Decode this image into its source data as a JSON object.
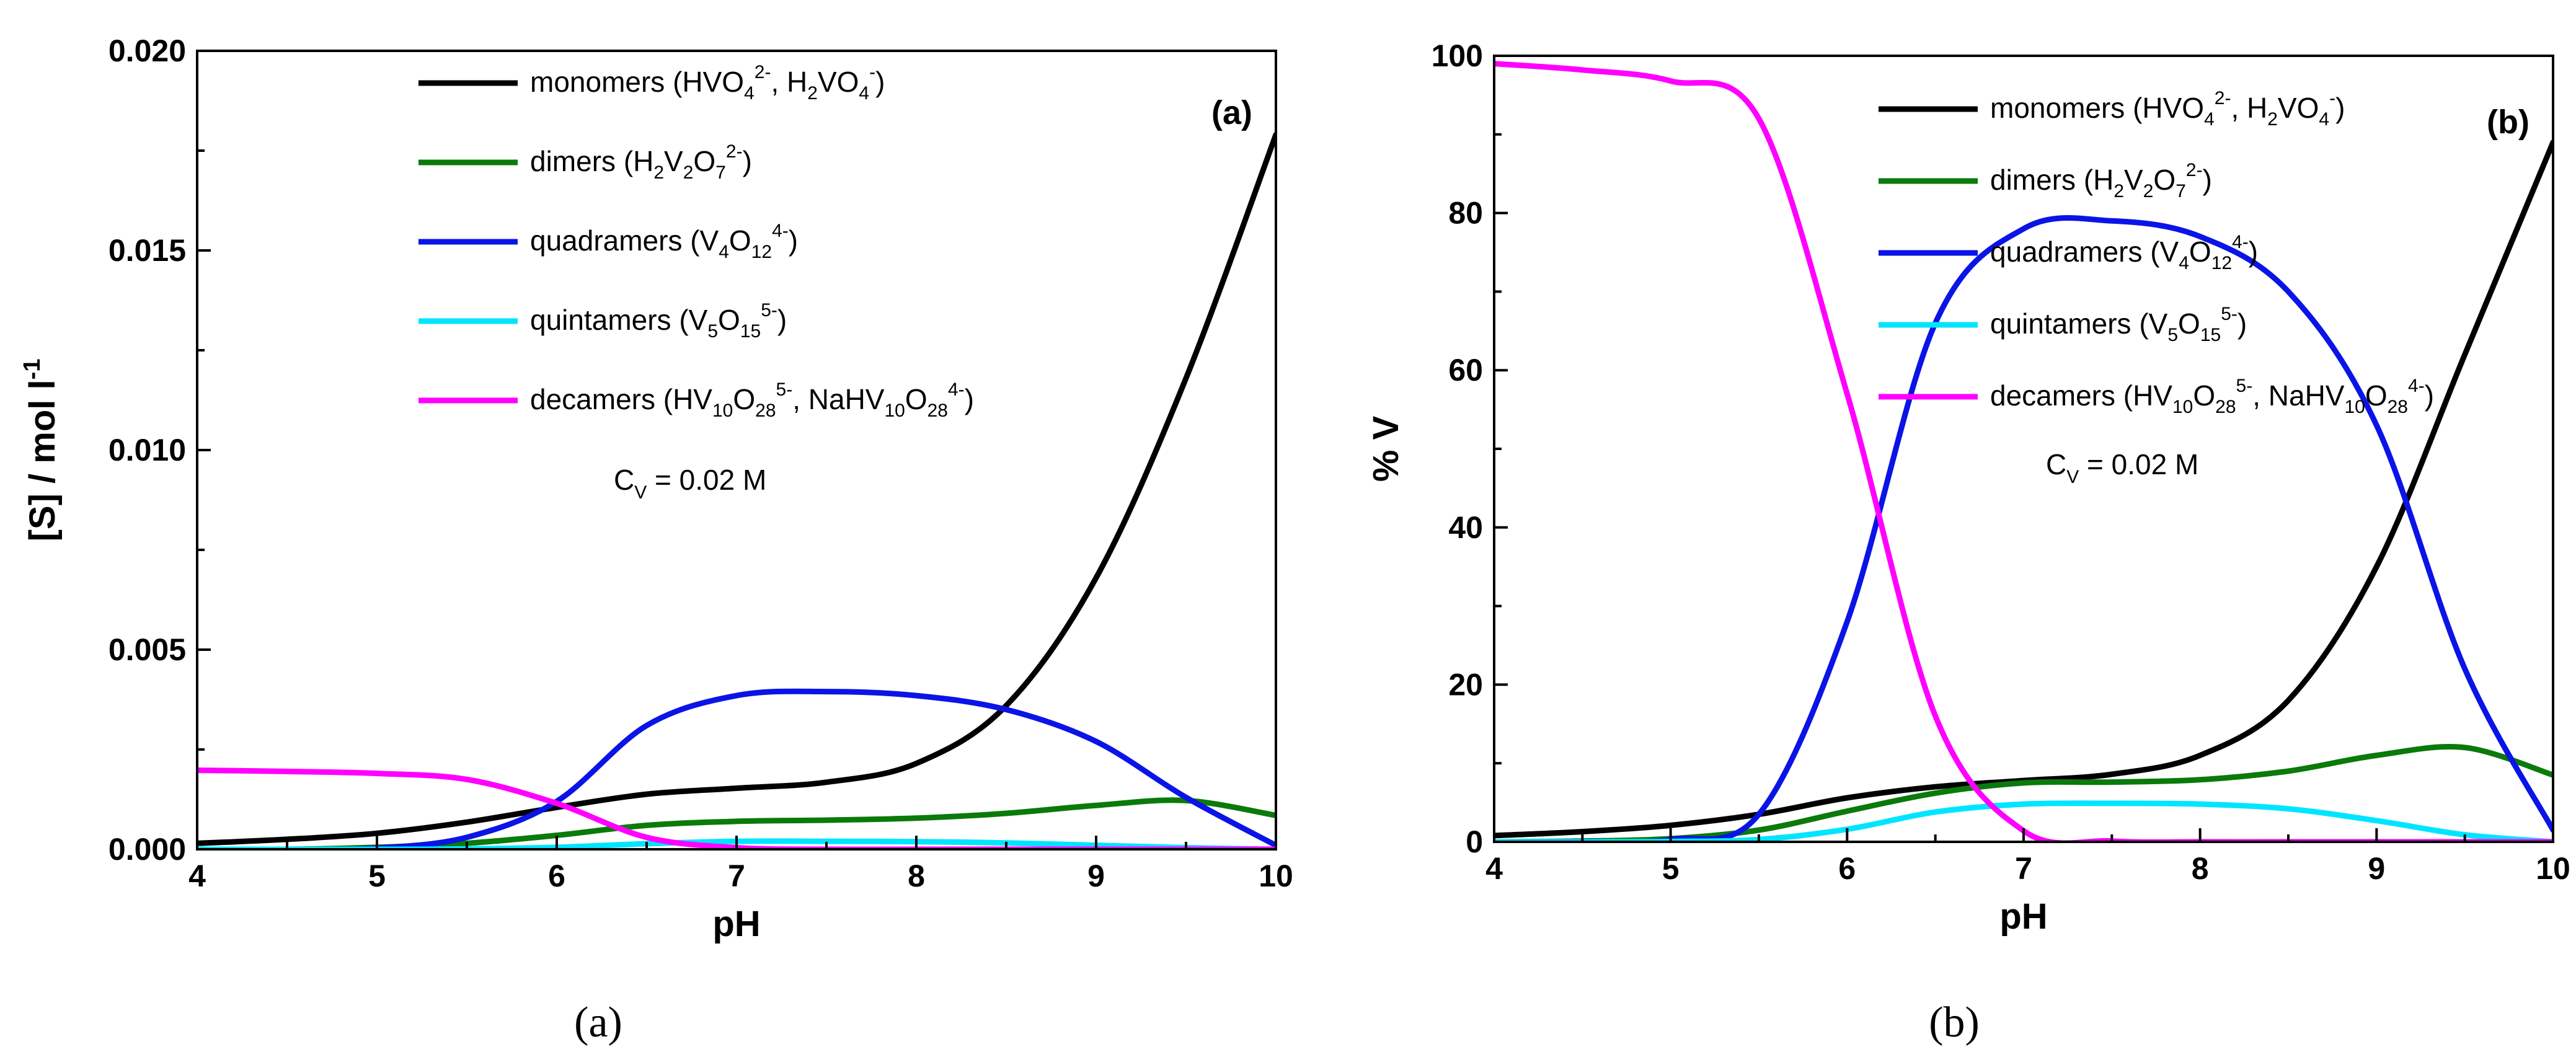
{
  "chart_data": [
    {
      "type": "line",
      "panel_tag": "(a)",
      "caption": "(a)",
      "xlabel": "pH",
      "ylabel": "[S] / mol l",
      "ylabel_sup": "-1",
      "xlim": [
        4,
        10
      ],
      "ylim": [
        0,
        0.02
      ],
      "xticks": [
        "4",
        "5",
        "6",
        "7",
        "8",
        "9",
        "10"
      ],
      "yticks": [
        "0.000",
        "0.005",
        "0.010",
        "0.015",
        "0.020"
      ],
      "annotation": {
        "main": "C",
        "sub": "V",
        "rest": " = 0.02 M"
      },
      "x": [
        4,
        4.5,
        5,
        5.5,
        6,
        6.5,
        7,
        7.5,
        8,
        8.5,
        9,
        9.5,
        10
      ],
      "series": [
        {
          "name": "monomers",
          "color": "#000000",
          "values": [
            0.00015,
            0.00025,
            0.0004,
            0.00068,
            0.00105,
            0.00138,
            0.00153,
            0.00168,
            0.00215,
            0.0036,
            0.0068,
            0.0118,
            0.0179
          ]
        },
        {
          "name": "dimers",
          "color": "#0a7a0a",
          "values": [
            0,
            0,
            5e-05,
            0.00015,
            0.00035,
            0.0006,
            0.0007,
            0.00073,
            0.00078,
            0.0009,
            0.0011,
            0.00122,
            0.00085
          ]
        },
        {
          "name": "quadramers",
          "color": "#0a14e6",
          "values": [
            0,
            0,
            3e-05,
            0.0003,
            0.0012,
            0.0031,
            0.00385,
            0.00395,
            0.00385,
            0.0035,
            0.0027,
            0.0013,
            0.0001
          ]
        },
        {
          "name": "quintamers",
          "color": "#00e5ff",
          "values": [
            0,
            0,
            0,
            1e-05,
            5e-05,
            0.00014,
            0.0002,
            0.0002,
            0.00019,
            0.00016,
            0.0001,
            4e-05,
            0
          ]
        },
        {
          "name": "decamers",
          "color": "#ff00ff",
          "values": [
            0.00198,
            0.00195,
            0.0019,
            0.00175,
            0.00115,
            0.0003,
            4e-05,
            0,
            0,
            0,
            0,
            0,
            0
          ]
        }
      ]
    },
    {
      "type": "line",
      "panel_tag": "(b)",
      "caption": "(b)",
      "xlabel": "pH",
      "ylabel": "% V",
      "ylabel_sup": "",
      "xlim": [
        4,
        10
      ],
      "ylim": [
        0,
        100
      ],
      "xticks": [
        "4",
        "5",
        "6",
        "7",
        "8",
        "9",
        "10"
      ],
      "yticks": [
        "0",
        "20",
        "40",
        "60",
        "80",
        "100"
      ],
      "annotation": {
        "main": "C",
        "sub": "V",
        "rest": " = 0.02 M"
      },
      "x": [
        4,
        4.5,
        5,
        5.5,
        6,
        6.5,
        7,
        7.5,
        8,
        8.5,
        9,
        9.5,
        10
      ],
      "series": [
        {
          "name": "monomers",
          "color": "#000000",
          "values": [
            0.8,
            1.3,
            2.1,
            3.5,
            5.6,
            7.0,
            7.8,
            8.6,
            11,
            18,
            35,
            62,
            89
          ]
        },
        {
          "name": "dimers",
          "color": "#0a7a0a",
          "values": [
            0,
            0.1,
            0.4,
            1.5,
            3.9,
            6.2,
            7.5,
            7.6,
            7.9,
            9.0,
            11,
            12,
            8.5
          ]
        },
        {
          "name": "quadramers",
          "color": "#0a14e6",
          "values": [
            0,
            0.05,
            0.3,
            3.5,
            28,
            66,
            78,
            79,
            77,
            70,
            53,
            22,
            1.5
          ]
        },
        {
          "name": "quintamers",
          "color": "#00e5ff",
          "values": [
            0,
            0,
            0.05,
            0.3,
            1.6,
            3.8,
            4.8,
            4.9,
            4.8,
            4.2,
            2.7,
            0.9,
            0
          ]
        },
        {
          "name": "decamers",
          "color": "#ff00ff",
          "values": [
            99.0,
            98.2,
            96.8,
            92,
            57,
            16,
            1.4,
            0.1,
            0,
            0,
            0,
            0,
            0
          ]
        }
      ]
    }
  ],
  "legend": [
    {
      "label": "monomers ",
      "formula": [
        [
          "t",
          "(HVO"
        ],
        [
          "b",
          "4"
        ],
        [
          "p",
          "2-"
        ],
        [
          "t",
          ", H"
        ],
        [
          "b",
          "2"
        ],
        [
          "t",
          "VO"
        ],
        [
          "b",
          "4"
        ],
        [
          "p",
          "-"
        ],
        [
          "t",
          ")"
        ]
      ]
    },
    {
      "label": "dimers ",
      "formula": [
        [
          "t",
          "(H"
        ],
        [
          "b",
          "2"
        ],
        [
          "t",
          "V"
        ],
        [
          "b",
          "2"
        ],
        [
          "t",
          "O"
        ],
        [
          "b",
          "7"
        ],
        [
          "p",
          "2-"
        ],
        [
          "t",
          ")"
        ]
      ]
    },
    {
      "label": "quadramers ",
      "formula": [
        [
          "t",
          "(V"
        ],
        [
          "b",
          "4"
        ],
        [
          "t",
          "O"
        ],
        [
          "b",
          "12"
        ],
        [
          "p",
          "4-"
        ],
        [
          "t",
          ")"
        ]
      ]
    },
    {
      "label": "quintamers ",
      "formula": [
        [
          "t",
          "(V"
        ],
        [
          "b",
          "5"
        ],
        [
          "t",
          "O"
        ],
        [
          "b",
          "15"
        ],
        [
          "p",
          "5-"
        ],
        [
          "t",
          ")"
        ]
      ]
    },
    {
      "label": "decamers ",
      "formula": [
        [
          "t",
          "(HV"
        ],
        [
          "b",
          "10"
        ],
        [
          "t",
          "O"
        ],
        [
          "b",
          "28"
        ],
        [
          "p",
          "5-"
        ],
        [
          "t",
          ", NaHV"
        ],
        [
          "b",
          "10"
        ],
        [
          "t",
          "O"
        ],
        [
          "b",
          "28"
        ],
        [
          "p",
          "4-"
        ],
        [
          "t",
          ")"
        ]
      ]
    }
  ]
}
